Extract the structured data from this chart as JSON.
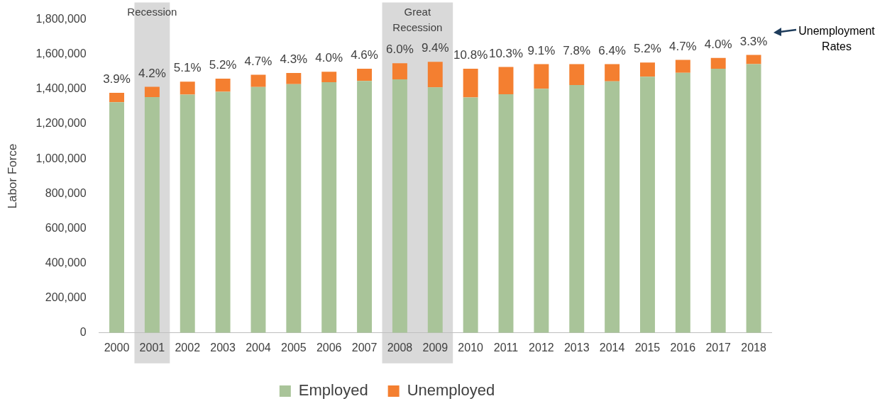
{
  "chart_data": {
    "type": "bar",
    "stacked": true,
    "ylabel": "Labor Force",
    "categories": [
      "2000",
      "2001",
      "2002",
      "2003",
      "2004",
      "2005",
      "2006",
      "2007",
      "2008",
      "2009",
      "2010",
      "2011",
      "2012",
      "2013",
      "2014",
      "2015",
      "2016",
      "2017",
      "2018"
    ],
    "series": [
      {
        "name": "Employed",
        "color": "#a9c499",
        "values": [
          1325000,
          1355000,
          1369000,
          1385000,
          1413000,
          1429000,
          1440000,
          1447000,
          1456000,
          1411000,
          1353000,
          1371000,
          1403000,
          1424000,
          1445000,
          1472000,
          1494000,
          1517000,
          1544000
        ]
      },
      {
        "name": "Unemployed",
        "color": "#f47f30",
        "values": [
          54000,
          59000,
          74000,
          76000,
          70000,
          64000,
          60000,
          70000,
          93000,
          146000,
          164000,
          157000,
          141000,
          120000,
          99000,
          81000,
          74000,
          63000,
          53000
        ]
      }
    ],
    "ylim": [
      0,
      1800000
    ],
    "yticks": [
      {
        "value": 0,
        "label": "0"
      },
      {
        "value": 200000,
        "label": "200,000"
      },
      {
        "value": 400000,
        "label": "400,000"
      },
      {
        "value": 600000,
        "label": "600,000"
      },
      {
        "value": 800000,
        "label": "800,000"
      },
      {
        "value": 1000000,
        "label": "1,000,000"
      },
      {
        "value": 1200000,
        "label": "1,200,000"
      },
      {
        "value": 1400000,
        "label": "1,400,000"
      },
      {
        "value": 1600000,
        "label": "1,600,000"
      },
      {
        "value": 1800000,
        "label": "1,800,000"
      }
    ],
    "bands": [
      {
        "axis": "x",
        "from": "2001",
        "to": "2001",
        "label": "Recession",
        "color": "#d9d9d9"
      },
      {
        "axis": "x",
        "from": "2008",
        "to": "2009",
        "label": "Great Recession",
        "color": "#d9d9d9"
      }
    ],
    "annotations": [
      "Unemployment Rates",
      {
        "text": "3.9%",
        "x": "2000",
        "y": 1379000
      },
      {
        "text": "4.2%",
        "x": "2001",
        "y": 1414000
      },
      {
        "text": "5.1%",
        "x": "2002",
        "y": 1443000
      },
      {
        "text": "5.2%",
        "x": "2003",
        "y": 1461000
      },
      {
        "text": "4.7%",
        "x": "2004",
        "y": 1483000
      },
      {
        "text": "4.3%",
        "x": "2005",
        "y": 1493000
      },
      {
        "text": "4.0%",
        "x": "2006",
        "y": 1500000
      },
      {
        "text": "4.6%",
        "x": "2007",
        "y": 1517000
      },
      {
        "text": "6.0%",
        "x": "2008",
        "y": 1549000
      },
      {
        "text": "9.4%",
        "x": "2009",
        "y": 1557000
      },
      {
        "text": "10.8%",
        "x": "2010",
        "y": 1517000
      },
      {
        "text": "10.3%",
        "x": "2011",
        "y": 1528000
      },
      {
        "text": "9.1%",
        "x": "2012",
        "y": 1544000
      },
      {
        "text": "7.8%",
        "x": "2013",
        "y": 1544000
      },
      {
        "text": "6.4%",
        "x": "2014",
        "y": 1544000
      },
      {
        "text": "5.2%",
        "x": "2015",
        "y": 1553000
      },
      {
        "text": "4.7%",
        "x": "2016",
        "y": 1568000
      },
      {
        "text": "4.0%",
        "x": "2017",
        "y": 1580000
      },
      {
        "text": "3.3%",
        "x": "2018",
        "y": 1597000
      }
    ],
    "grid": false,
    "legend": "bottom"
  }
}
